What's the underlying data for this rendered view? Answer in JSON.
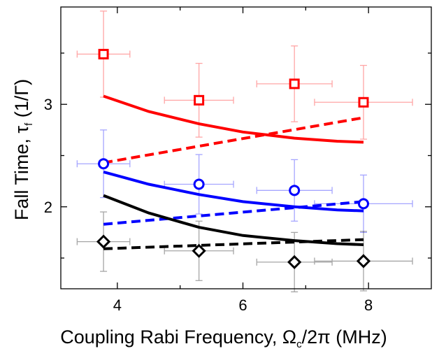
{
  "chart_data": {
    "type": "scatter",
    "xlabel": {
      "prefix": "Coupling Rabi Frequency, ",
      "symbol": "Ω",
      "sub": "c",
      "suffix": "/2π (MHz)"
    },
    "ylabel": {
      "prefix": "Fall Time, ",
      "symbol": "τ",
      "sub": "f",
      "suffix": " (1/Γ)"
    },
    "xlim": [
      3.1,
      9.0
    ],
    "ylim": [
      1.2,
      3.95
    ],
    "x_ticks": [
      4,
      6,
      8
    ],
    "y_ticks": [
      2,
      3
    ],
    "x_minor_ticks": [
      5,
      7
    ],
    "y_minor_ticks": [
      1.5,
      2.5,
      3.5
    ],
    "grid": false,
    "series": [
      {
        "color": "#ff0000",
        "marker": "square",
        "points": [
          {
            "x": 3.78,
            "y": 3.49,
            "xerr": 0.42,
            "yerr": 0.42
          },
          {
            "x": 5.3,
            "y": 3.04,
            "xerr": 0.55,
            "yerr": 0.36
          },
          {
            "x": 6.82,
            "y": 3.2,
            "xerr": 0.6,
            "yerr": 0.37
          },
          {
            "x": 7.92,
            "y": 3.02,
            "xerr": 0.78,
            "yerr": 0.36
          }
        ],
        "solid_curve": {
          "x": [
            3.78,
            4.5,
            5.3,
            6.0,
            6.82,
            7.5,
            7.92
          ],
          "y": [
            3.08,
            2.93,
            2.81,
            2.73,
            2.67,
            2.64,
            2.63
          ]
        },
        "dashed_curve": {
          "x": [
            3.78,
            7.92
          ],
          "y": [
            2.43,
            2.87
          ]
        }
      },
      {
        "color": "#0000ff",
        "marker": "circle",
        "points": [
          {
            "x": 3.78,
            "y": 2.42,
            "xerr": 0.42,
            "yerr": 0.33
          },
          {
            "x": 5.3,
            "y": 2.22,
            "xerr": 0.55,
            "yerr": 0.29
          },
          {
            "x": 6.82,
            "y": 2.16,
            "xerr": 0.6,
            "yerr": 0.3
          },
          {
            "x": 7.92,
            "y": 2.03,
            "xerr": 0.78,
            "yerr": 0.28
          }
        ],
        "solid_curve": {
          "x": [
            3.78,
            4.5,
            5.3,
            6.0,
            6.82,
            7.5,
            7.92
          ],
          "y": [
            2.34,
            2.22,
            2.12,
            2.05,
            2.0,
            1.97,
            1.96
          ]
        },
        "dashed_curve": {
          "x": [
            3.78,
            7.92
          ],
          "y": [
            1.83,
            2.05
          ]
        }
      },
      {
        "color": "#000000",
        "marker": "diamond",
        "points": [
          {
            "x": 3.78,
            "y": 1.66,
            "xerr": 0.42,
            "yerr": 0.29
          },
          {
            "x": 5.3,
            "y": 1.57,
            "xerr": 0.55,
            "yerr": 0.29
          },
          {
            "x": 6.82,
            "y": 1.46,
            "xerr": 0.6,
            "yerr": 0.29
          },
          {
            "x": 7.92,
            "y": 1.47,
            "xerr": 0.78,
            "yerr": 0.29
          }
        ],
        "solid_curve": {
          "x": [
            3.78,
            4.5,
            5.3,
            6.0,
            6.82,
            7.5,
            7.92
          ],
          "y": [
            2.11,
            1.94,
            1.8,
            1.72,
            1.67,
            1.64,
            1.63
          ]
        },
        "dashed_curve": {
          "x": [
            3.78,
            7.92
          ],
          "y": [
            1.59,
            1.68
          ]
        }
      }
    ]
  }
}
